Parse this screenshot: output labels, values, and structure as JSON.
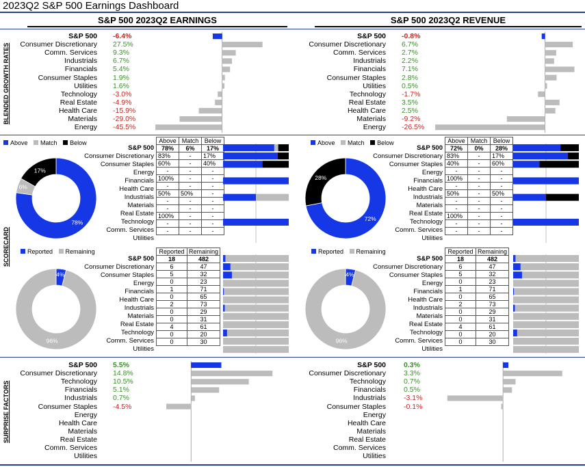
{
  "title": "2023Q2 S&P 500 Earnings Dashboard",
  "columns": {
    "earnings": "S&P 500 2023Q2 EARNINGS",
    "revenue": "S&P 500 2023Q2 REVENUE"
  },
  "section_labels": {
    "growth": "BLENDED GROWTH RATES",
    "scorecard": "SCORECARD",
    "surprise": "SURPRISE FACTORS"
  },
  "colors": {
    "blue": "#1537e6",
    "gray": "#bcbcbc",
    "black": "#000000",
    "green": "#3a8f2a",
    "red": "#d0221c"
  },
  "legend_beat": {
    "above": "Above",
    "match": "Match",
    "below": "Below"
  },
  "legend_report": {
    "reported": "Reported",
    "remaining": "Remaining"
  },
  "beat_headers": [
    "Above",
    "Match",
    "Below"
  ],
  "report_headers": [
    "Reported",
    "Remaining"
  ],
  "chart_data": [
    {
      "id": "earnings_growth",
      "type": "bar",
      "orientation": "horizontal",
      "categories": [
        "S&P 500",
        "Consumer Discretionary",
        "Comm. Services",
        "Industrials",
        "Financials",
        "Consumer Staples",
        "Utilities",
        "Technology",
        "Real Estate",
        "Health Care",
        "Materials",
        "Energy"
      ],
      "labels": [
        "-6.4%",
        "27.5%",
        "9.3%",
        "6.7%",
        "5.4%",
        "1.9%",
        "1.6%",
        "-3.0%",
        "-4.9%",
        "-15.9%",
        "-29.0%",
        "-45.5%"
      ],
      "values": [
        -6.4,
        27.5,
        9.3,
        6.7,
        5.4,
        1.9,
        1.6,
        -3.0,
        -4.9,
        -15.9,
        -29.0,
        -45.5
      ]
    },
    {
      "id": "revenue_growth",
      "type": "bar",
      "orientation": "horizontal",
      "categories": [
        "S&P 500",
        "Consumer Discretionary",
        "Comm. Services",
        "Industrials",
        "Financials",
        "Consumer Staples",
        "Utilities",
        "Technology",
        "Real Estate",
        "Health Care",
        "Materials",
        "Energy"
      ],
      "labels": [
        "-0.8%",
        "6.7%",
        "2.7%",
        "2.2%",
        "7.1%",
        "2.8%",
        "0.5%",
        "-1.7%",
        "3.5%",
        "2.5%",
        "-9.2%",
        "-26.5%"
      ],
      "values": [
        -0.8,
        6.7,
        2.7,
        2.2,
        7.1,
        2.8,
        0.5,
        -1.7,
        3.5,
        2.5,
        -9.2,
        -26.5
      ]
    },
    {
      "id": "earnings_beat_donut",
      "type": "pie",
      "labels": [
        "Above",
        "Match",
        "Below"
      ],
      "values": [
        78,
        6,
        17
      ],
      "value_labels": [
        "78%",
        "6%",
        "17%"
      ]
    },
    {
      "id": "earnings_beat_table",
      "type": "table",
      "categories": [
        "S&P 500",
        "Consumer Discretionary",
        "Consumer Staples",
        "Energy",
        "Financials",
        "Health Care",
        "Industrials",
        "Materials",
        "Real Estate",
        "Technology",
        "Comm. Services",
        "Utilities"
      ],
      "rows": [
        [
          "78%",
          "6%",
          "17%"
        ],
        [
          "83%",
          "-",
          "17%"
        ],
        [
          "60%",
          "-",
          "40%"
        ],
        [
          "-",
          "-",
          "-"
        ],
        [
          "100%",
          "-",
          "-"
        ],
        [
          "-",
          "-",
          "-"
        ],
        [
          "50%",
          "50%",
          "-"
        ],
        [
          "-",
          "-",
          "-"
        ],
        [
          "-",
          "-",
          "-"
        ],
        [
          "100%",
          "-",
          "-"
        ],
        [
          "-",
          "-",
          "-"
        ],
        [
          "-",
          "-",
          "-"
        ]
      ],
      "stack": [
        [
          78,
          6,
          17
        ],
        [
          83,
          0,
          17
        ],
        [
          60,
          0,
          40
        ],
        [
          0,
          0,
          0
        ],
        [
          100,
          0,
          0
        ],
        [
          0,
          0,
          0
        ],
        [
          50,
          50,
          0
        ],
        [
          0,
          0,
          0
        ],
        [
          0,
          0,
          0
        ],
        [
          100,
          0,
          0
        ],
        [
          0,
          0,
          0
        ],
        [
          0,
          0,
          0
        ]
      ]
    },
    {
      "id": "revenue_beat_donut",
      "type": "pie",
      "labels": [
        "Above",
        "Match",
        "Below"
      ],
      "values": [
        72,
        0,
        28
      ],
      "value_labels": [
        "72%",
        "",
        "28%"
      ]
    },
    {
      "id": "revenue_beat_table",
      "type": "table",
      "categories": [
        "S&P 500",
        "Consumer Discretionary",
        "Consumer Staples",
        "Energy",
        "Financials",
        "Health Care",
        "Industrials",
        "Materials",
        "Real Estate",
        "Technology",
        "Comm. Services",
        "Utilities"
      ],
      "rows": [
        [
          "72%",
          "0%",
          "28%"
        ],
        [
          "83%",
          "-",
          "17%"
        ],
        [
          "40%",
          "-",
          "60%"
        ],
        [
          "-",
          "-",
          "-"
        ],
        [
          "100%",
          "-",
          "-"
        ],
        [
          "-",
          "-",
          "-"
        ],
        [
          "50%",
          "-",
          "50%"
        ],
        [
          "-",
          "-",
          "-"
        ],
        [
          "-",
          "-",
          "-"
        ],
        [
          "100%",
          "-",
          "-"
        ],
        [
          "-",
          "-",
          "-"
        ],
        [
          "-",
          "-",
          "-"
        ]
      ],
      "stack": [
        [
          72,
          0,
          28
        ],
        [
          83,
          0,
          17
        ],
        [
          40,
          0,
          60
        ],
        [
          0,
          0,
          0
        ],
        [
          100,
          0,
          0
        ],
        [
          0,
          0,
          0
        ],
        [
          50,
          0,
          50
        ],
        [
          0,
          0,
          0
        ],
        [
          0,
          0,
          0
        ],
        [
          100,
          0,
          0
        ],
        [
          0,
          0,
          0
        ],
        [
          0,
          0,
          0
        ]
      ]
    },
    {
      "id": "report_donut",
      "type": "pie",
      "labels": [
        "Reported",
        "Remaining"
      ],
      "values": [
        4,
        96
      ],
      "value_labels": [
        "4%",
        "96%"
      ]
    },
    {
      "id": "report_table",
      "type": "table",
      "categories": [
        "S&P 500",
        "Consumer Discretionary",
        "Consumer Staples",
        "Energy",
        "Financials",
        "Health Care",
        "Industrials",
        "Materials",
        "Real Estate",
        "Technology",
        "Comm. Services",
        "Utilities"
      ],
      "rows": [
        [
          "18",
          "482"
        ],
        [
          "6",
          "47"
        ],
        [
          "5",
          "32"
        ],
        [
          "0",
          "23"
        ],
        [
          "1",
          "71"
        ],
        [
          "0",
          "65"
        ],
        [
          "2",
          "73"
        ],
        [
          "0",
          "29"
        ],
        [
          "0",
          "31"
        ],
        [
          "4",
          "61"
        ],
        [
          "0",
          "20"
        ],
        [
          "0",
          "30"
        ]
      ],
      "reported": [
        18,
        6,
        5,
        0,
        1,
        0,
        2,
        0,
        0,
        4,
        0,
        0
      ],
      "remaining": [
        482,
        47,
        32,
        23,
        71,
        65,
        73,
        29,
        31,
        61,
        20,
        30
      ]
    },
    {
      "id": "earnings_surprise",
      "type": "bar",
      "orientation": "horizontal",
      "categories": [
        "S&P 500",
        "Consumer Discretionary",
        "Technology",
        "Financials",
        "Industrials",
        "Consumer Staples",
        "Energy",
        "Health Care",
        "Materials",
        "Real Estate",
        "Comm. Services",
        "Utilities"
      ],
      "labels": [
        "5.5%",
        "14.8%",
        "10.5%",
        "5.1%",
        "0.7%",
        "-4.5%",
        "",
        "",
        "",
        "",
        "",
        ""
      ],
      "values": [
        5.5,
        14.8,
        10.5,
        5.1,
        0.7,
        -4.5,
        null,
        null,
        null,
        null,
        null,
        null
      ]
    },
    {
      "id": "revenue_surprise",
      "type": "bar",
      "orientation": "horizontal",
      "categories": [
        "S&P 500",
        "Consumer Discretionary",
        "Technology",
        "Financials",
        "Industrials",
        "Consumer Staples",
        "Energy",
        "Health Care",
        "Materials",
        "Real Estate",
        "Comm. Services",
        "Utilities"
      ],
      "labels": [
        "0.3%",
        "3.3%",
        "0.7%",
        "0.5%",
        "-3.1%",
        "-0.1%",
        "",
        "",
        "",
        "",
        "",
        ""
      ],
      "values": [
        0.3,
        3.3,
        0.7,
        0.5,
        -3.1,
        -0.1,
        null,
        null,
        null,
        null,
        null,
        null
      ]
    }
  ]
}
